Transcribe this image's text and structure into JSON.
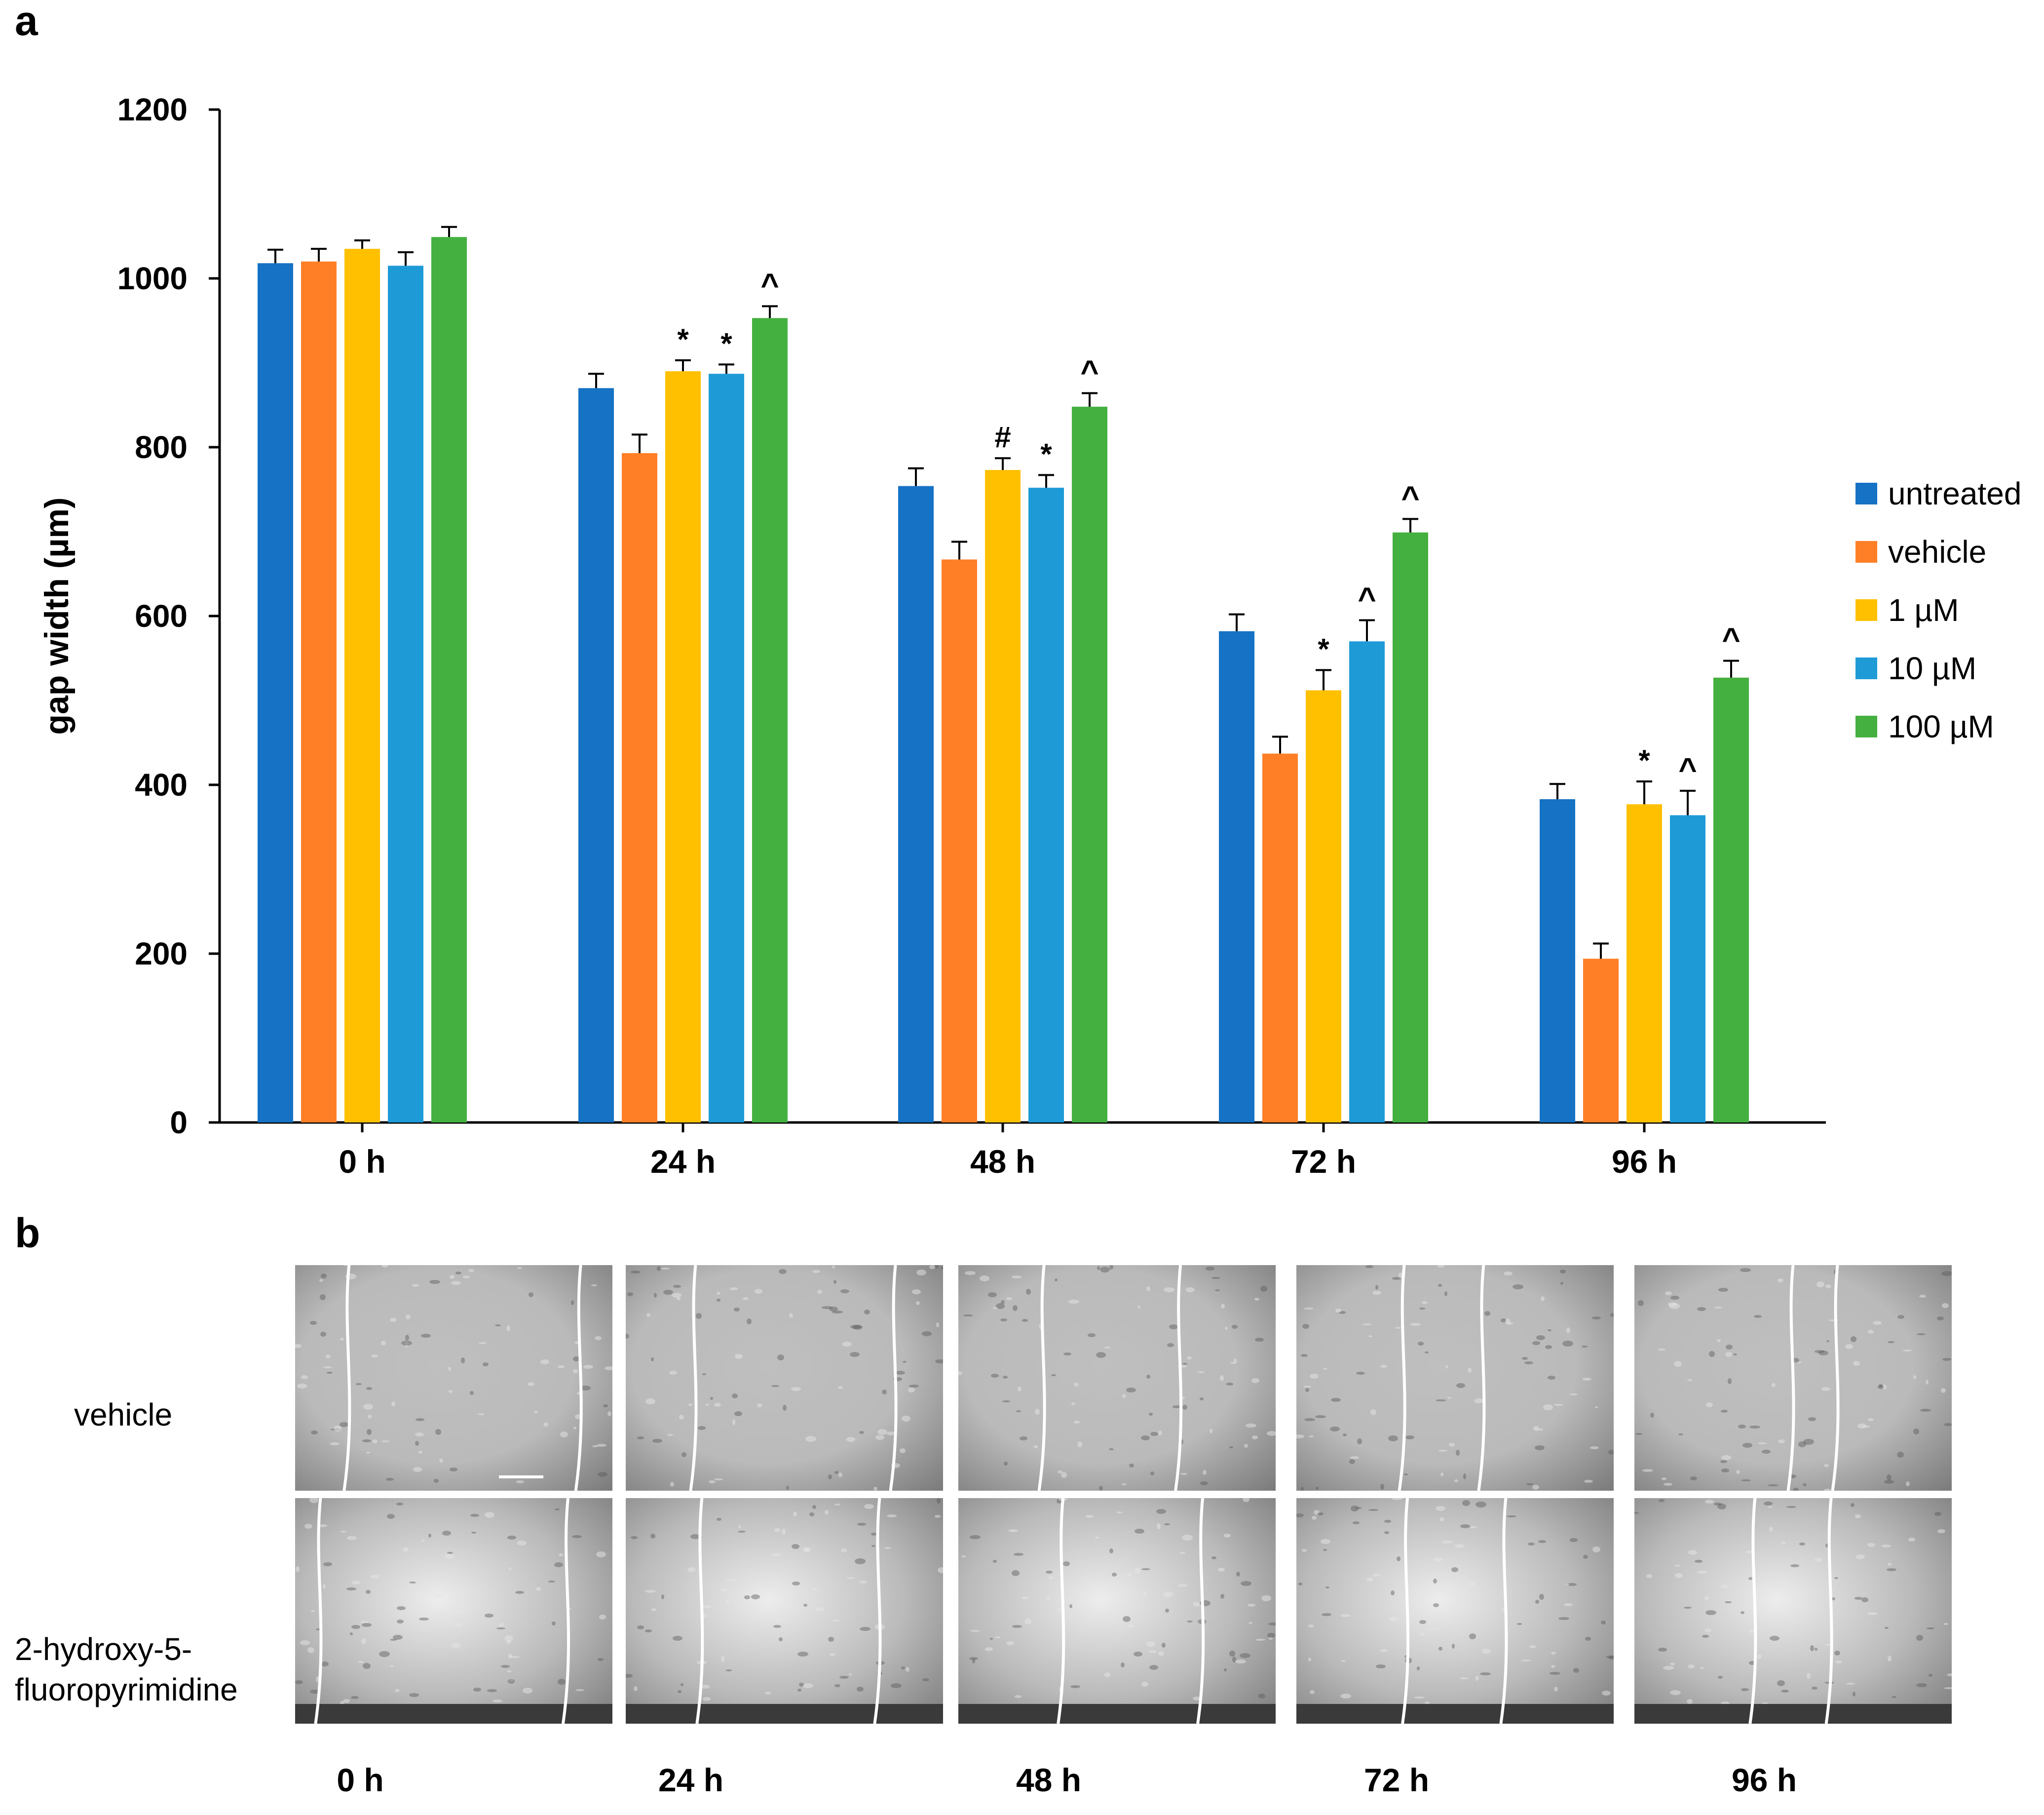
{
  "figure": {
    "panel_a_label": "a",
    "panel_b_label": "b"
  },
  "chart_data": {
    "type": "bar",
    "title": "",
    "xlabel": "",
    "ylabel": "gap width (µm)",
    "ylim": [
      0,
      1200
    ],
    "yticks": [
      0,
      200,
      400,
      600,
      800,
      1000,
      1200
    ],
    "categories": [
      "0 h",
      "24 h",
      "48 h",
      "72 h",
      "96 h"
    ],
    "legend_position": "right",
    "grid": false,
    "series": [
      {
        "name": "untreated",
        "color": "#1672C4",
        "values": [
          1018,
          870,
          754,
          582,
          383
        ],
        "errors": [
          16,
          17,
          21,
          20,
          18
        ],
        "annotations": [
          "",
          "",
          "",
          "",
          ""
        ]
      },
      {
        "name": "vehicle",
        "color": "#FF7F27",
        "values": [
          1020,
          793,
          667,
          437,
          194
        ],
        "errors": [
          15,
          22,
          21,
          20,
          18
        ],
        "annotations": [
          "",
          "",
          "",
          "",
          ""
        ]
      },
      {
        "name": "1 µM",
        "color": "#FFC000",
        "values": [
          1035,
          890,
          773,
          512,
          377
        ],
        "errors": [
          10,
          13,
          14,
          24,
          27
        ],
        "annotations": [
          "",
          "*",
          "#",
          "*",
          "*"
        ]
      },
      {
        "name": "10 µM",
        "color": "#1E9BD7",
        "values": [
          1015,
          887,
          752,
          570,
          364
        ],
        "errors": [
          16,
          11,
          15,
          25,
          29
        ],
        "annotations": [
          "",
          "*",
          "*",
          "^",
          "^"
        ]
      },
      {
        "name": "100 µM",
        "color": "#44B03F",
        "values": [
          1049,
          953,
          848,
          699,
          527
        ],
        "errors": [
          12,
          14,
          16,
          16,
          20
        ],
        "annotations": [
          "",
          "^",
          "^",
          "^",
          "^"
        ]
      }
    ]
  },
  "panel_b": {
    "rows": [
      "vehicle",
      "2-hydroxy-5-\nfluoropyrimidine"
    ],
    "columns": [
      "0 h",
      "24 h",
      "48 h",
      "72 h",
      "96 h"
    ]
  }
}
